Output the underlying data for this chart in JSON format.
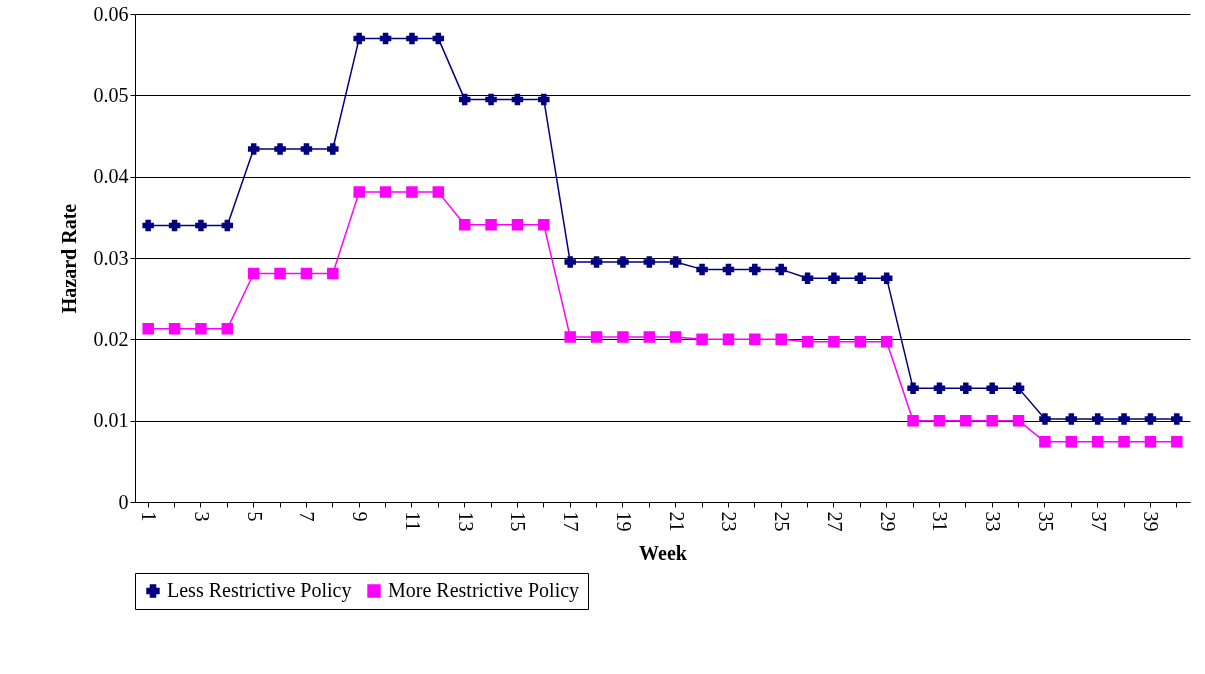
{
  "chart_data": {
    "type": "line",
    "xlabel": "Week",
    "ylabel": "Hazard Rate",
    "categories": [
      "1",
      null,
      "3",
      null,
      "5",
      null,
      "7",
      null,
      "9",
      null,
      "11",
      null,
      "13",
      null,
      "15",
      null,
      "17",
      null,
      "19",
      null,
      "21",
      null,
      "23",
      null,
      "25",
      null,
      "27",
      null,
      "29",
      null,
      "31",
      null,
      "33",
      null,
      "35",
      null,
      "37",
      null,
      "39",
      null
    ],
    "series": [
      {
        "name": "Less Restrictive Policy",
        "color": "#000080",
        "marker": "cross",
        "values": [
          0.034,
          0.034,
          0.034,
          0.034,
          0.0434,
          0.0434,
          0.0434,
          0.0434,
          0.057,
          0.057,
          0.057,
          0.057,
          0.0495,
          0.0495,
          0.0495,
          0.0495,
          0.0295,
          0.0295,
          0.0295,
          0.0295,
          0.0295,
          0.0286,
          0.0286,
          0.0286,
          0.0286,
          0.0275,
          0.0275,
          0.0275,
          0.0275,
          0.014,
          0.014,
          0.014,
          0.014,
          0.014,
          0.0102,
          0.0102,
          0.0102,
          0.0102,
          0.0102,
          0.0102
        ]
      },
      {
        "name": "More Restrictive Policy",
        "color": "#ff00ff",
        "marker": "square",
        "values": [
          0.0213,
          0.0213,
          0.0213,
          0.0213,
          0.0281,
          0.0281,
          0.0281,
          0.0281,
          0.0381,
          0.0381,
          0.0381,
          0.0381,
          0.0341,
          0.0341,
          0.0341,
          0.0341,
          0.0203,
          0.0203,
          0.0203,
          0.0203,
          0.0203,
          0.02,
          0.02,
          0.02,
          0.02,
          0.0197,
          0.0197,
          0.0197,
          0.0197,
          0.01,
          0.01,
          0.01,
          0.01,
          0.01,
          0.0074,
          0.0074,
          0.0074,
          0.0074,
          0.0074,
          0.0074
        ]
      }
    ],
    "ylim": [
      0,
      0.06
    ],
    "yticks": [
      0,
      0.01,
      0.02,
      0.03,
      0.04,
      0.05,
      0.06
    ],
    "grid": "y",
    "legend": "bottom",
    "line_style": "solid"
  }
}
